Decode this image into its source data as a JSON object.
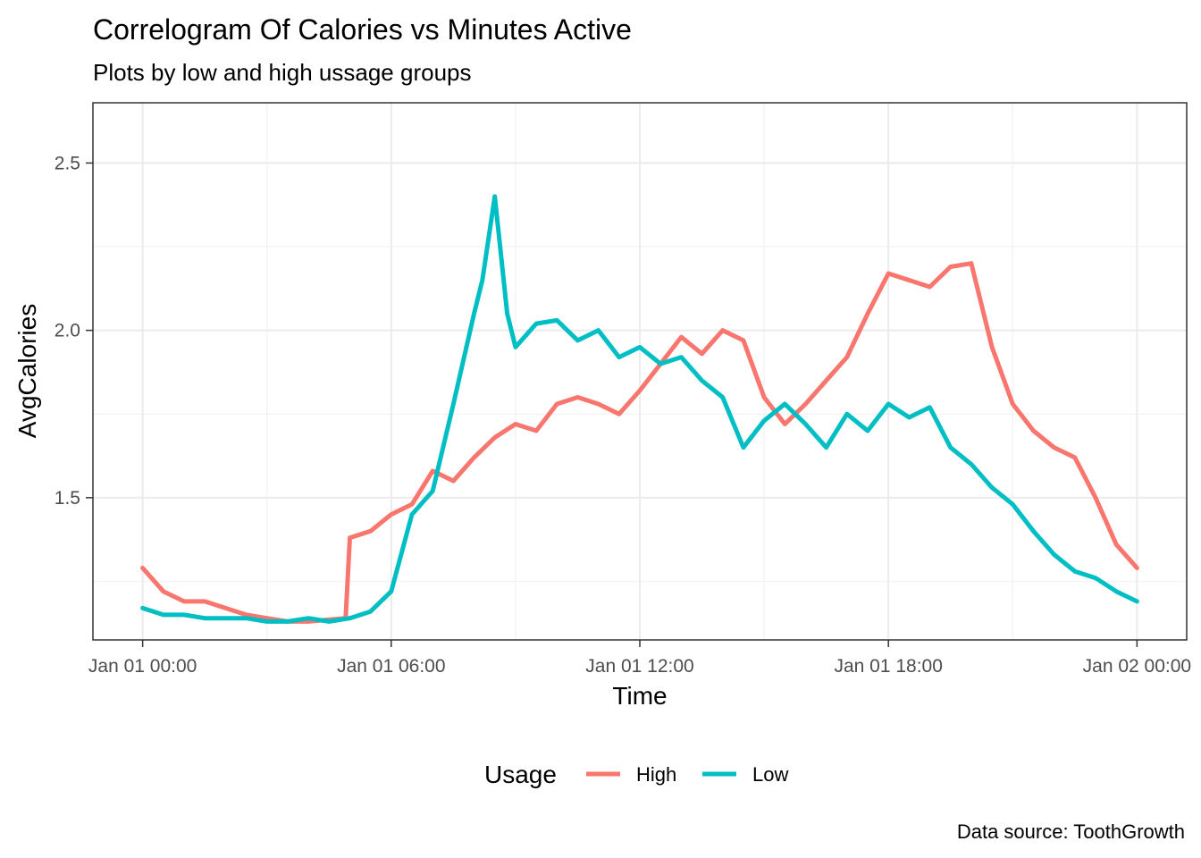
{
  "chart_data": {
    "type": "line",
    "title": "Correlogram Of Calories vs Minutes Active",
    "subtitle": "Plots by low and high ussage groups",
    "caption": "Data source: ToothGrowth",
    "xlabel": "Time",
    "ylabel": "AvgCalories",
    "xlim_hours": [
      -1.2,
      25.2
    ],
    "ylim": [
      1.075,
      2.68
    ],
    "x_ticks": [
      {
        "hour": 0,
        "label": "Jan 01 00:00"
      },
      {
        "hour": 6,
        "label": "Jan 01 06:00"
      },
      {
        "hour": 12,
        "label": "Jan 01 12:00"
      },
      {
        "hour": 18,
        "label": "Jan 01 18:00"
      },
      {
        "hour": 24,
        "label": "Jan 02 00:00"
      }
    ],
    "y_ticks": [
      {
        "value": 1.5,
        "label": "1.5"
      },
      {
        "value": 2.0,
        "label": "2.0"
      },
      {
        "value": 2.5,
        "label": "2.5"
      }
    ],
    "grid": true,
    "legend": {
      "title": "Usage",
      "position": "bottom"
    },
    "series": [
      {
        "name": "High",
        "color": "#F8766D",
        "x_hours": [
          0,
          0.5,
          1,
          1.5,
          2,
          2.5,
          3,
          3.5,
          4,
          4.9,
          5,
          5.5,
          6,
          6.5,
          7,
          7.5,
          8,
          8.5,
          9,
          9.5,
          10,
          10.5,
          11,
          11.5,
          12,
          12.5,
          13,
          13.5,
          14,
          14.5,
          15,
          15.5,
          16,
          16.5,
          17,
          17.5,
          18,
          18.5,
          19,
          19.5,
          20,
          20.5,
          21,
          21.5,
          22,
          22.5,
          23,
          23.5,
          24
        ],
        "values": [
          1.29,
          1.22,
          1.19,
          1.19,
          1.17,
          1.15,
          1.14,
          1.13,
          1.13,
          1.14,
          1.38,
          1.4,
          1.45,
          1.48,
          1.58,
          1.55,
          1.62,
          1.68,
          1.72,
          1.7,
          1.78,
          1.8,
          1.78,
          1.75,
          1.82,
          1.9,
          1.98,
          1.93,
          2.0,
          1.97,
          1.8,
          1.72,
          1.78,
          1.85,
          1.92,
          2.05,
          2.17,
          2.15,
          2.13,
          2.19,
          2.2,
          1.95,
          1.78,
          1.7,
          1.65,
          1.62,
          1.5,
          1.36,
          1.29
        ]
      },
      {
        "name": "Low",
        "color": "#00BFC4",
        "x_hours": [
          0,
          0.5,
          1,
          1.5,
          2,
          2.5,
          3,
          3.5,
          4,
          4.5,
          5,
          5.5,
          6,
          6.5,
          7,
          7.5,
          8,
          8.2,
          8.5,
          8.8,
          9,
          9.5,
          10,
          10.5,
          11,
          11.5,
          12,
          12.5,
          13,
          13.5,
          14,
          14.5,
          15,
          15.5,
          16,
          16.5,
          17,
          17.5,
          18,
          18.5,
          19,
          19.5,
          20,
          20.5,
          21,
          21.5,
          22,
          22.5,
          23,
          23.5,
          24
        ],
        "values": [
          1.17,
          1.15,
          1.15,
          1.14,
          1.14,
          1.14,
          1.13,
          1.13,
          1.14,
          1.13,
          1.14,
          1.16,
          1.22,
          1.45,
          1.52,
          1.78,
          2.05,
          2.15,
          2.4,
          2.05,
          1.95,
          2.02,
          2.03,
          1.97,
          2.0,
          1.92,
          1.95,
          1.9,
          1.92,
          1.85,
          1.8,
          1.65,
          1.73,
          1.78,
          1.72,
          1.65,
          1.75,
          1.7,
          1.78,
          1.74,
          1.77,
          1.65,
          1.6,
          1.53,
          1.48,
          1.4,
          1.33,
          1.28,
          1.26,
          1.22,
          1.19
        ]
      }
    ]
  }
}
